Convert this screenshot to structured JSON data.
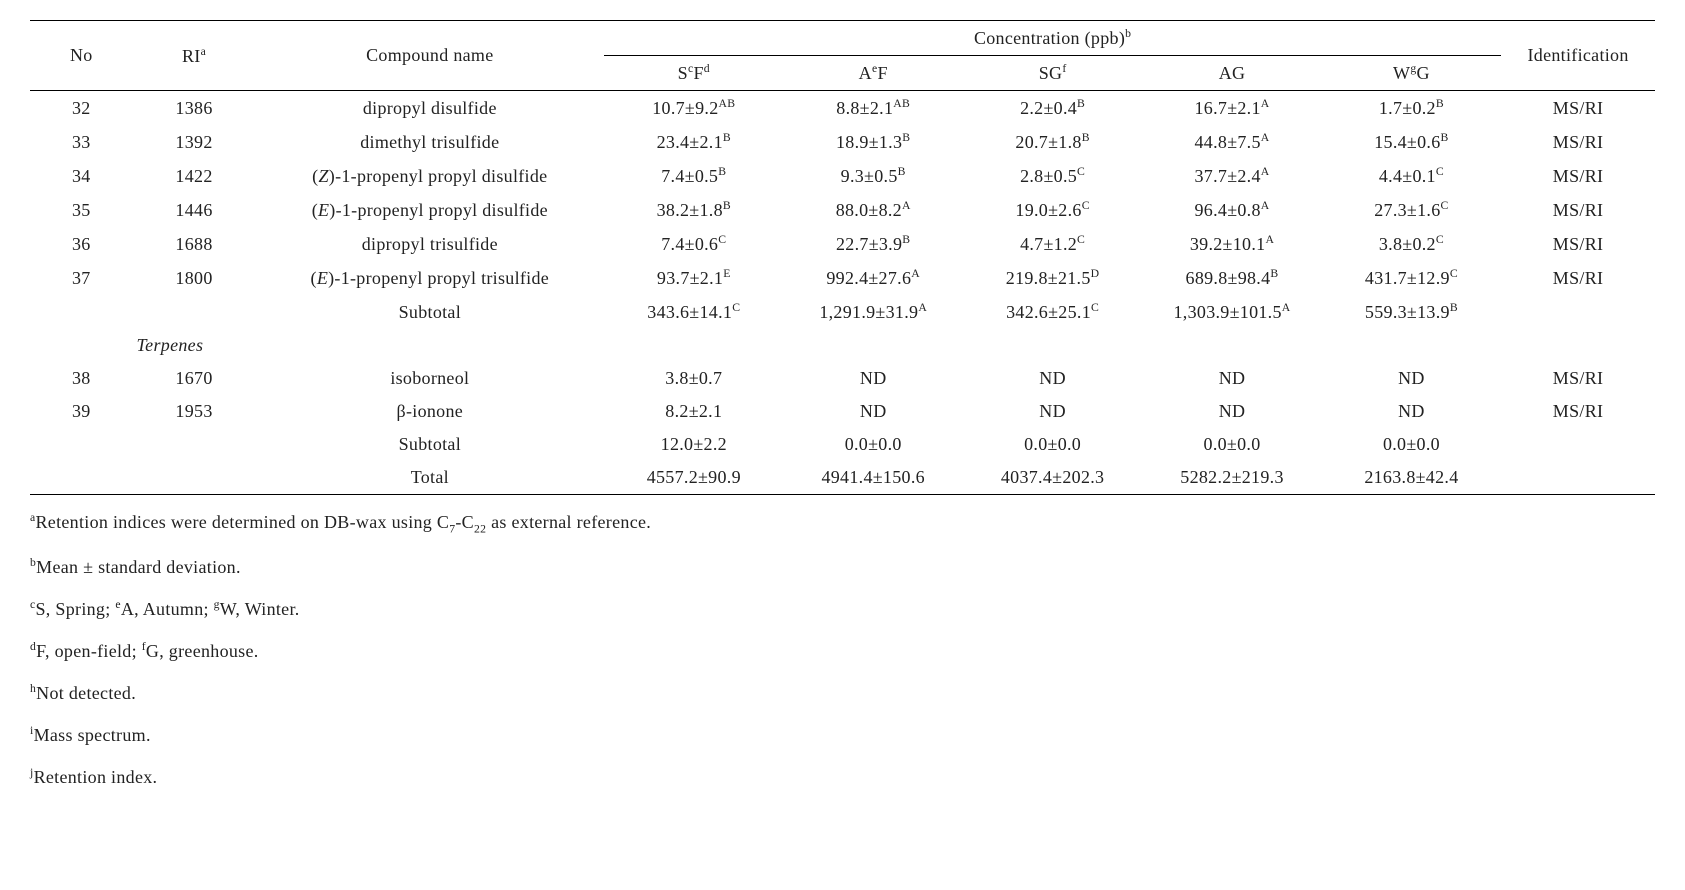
{
  "table": {
    "header": {
      "no": "No",
      "ri": "RI",
      "ri_sup": "a",
      "compound": "Compound name",
      "conc": "Concentration (ppb)",
      "conc_sup": "b",
      "ident": "Identification",
      "cols": {
        "c1_a": "S",
        "c1_sup1": "c",
        "c1_b": "F",
        "c1_sup2": "d",
        "c2_a": "A",
        "c2_sup1": "e",
        "c2_b": "F",
        "c3_a": "SG",
        "c3_sup1": "f",
        "c4": "AG",
        "c5_a": "W",
        "c5_sup1": "g",
        "c5_b": "G"
      }
    },
    "rows": [
      {
        "no": "32",
        "ri": "1386",
        "name": "dipropyl disulfide",
        "v": [
          {
            "t": "10.7±9.2",
            "s": "AB"
          },
          {
            "t": "8.8±2.1",
            "s": "AB"
          },
          {
            "t": "2.2±0.4",
            "s": "B"
          },
          {
            "t": "16.7±2.1",
            "s": "A"
          },
          {
            "t": "1.7±0.2",
            "s": "B"
          }
        ],
        "id": "MS/RI"
      },
      {
        "no": "33",
        "ri": "1392",
        "name": "dimethyl trisulfide",
        "v": [
          {
            "t": "23.4±2.1",
            "s": "B"
          },
          {
            "t": "18.9±1.3",
            "s": "B"
          },
          {
            "t": "20.7±1.8",
            "s": "B"
          },
          {
            "t": "44.8±7.5",
            "s": "A"
          },
          {
            "t": "15.4±0.6",
            "s": "B"
          }
        ],
        "id": "MS/RI"
      },
      {
        "no": "34",
        "ri": "1422",
        "name_pre": "(",
        "name_it": "Z",
        "name_post": ")-1-propenyl propyl disulfide",
        "v": [
          {
            "t": "7.4±0.5",
            "s": "B"
          },
          {
            "t": "9.3±0.5",
            "s": "B"
          },
          {
            "t": "2.8±0.5",
            "s": "C"
          },
          {
            "t": "37.7±2.4",
            "s": "A"
          },
          {
            "t": "4.4±0.1",
            "s": "C"
          }
        ],
        "id": "MS/RI"
      },
      {
        "no": "35",
        "ri": "1446",
        "name_pre": "(",
        "name_it": "E",
        "name_post": ")-1-propenyl propyl disulfide",
        "v": [
          {
            "t": "38.2±1.8",
            "s": "B"
          },
          {
            "t": "88.0±8.2",
            "s": "A"
          },
          {
            "t": "19.0±2.6",
            "s": "C"
          },
          {
            "t": "96.4±0.8",
            "s": "A"
          },
          {
            "t": "27.3±1.6",
            "s": "C"
          }
        ],
        "id": "MS/RI"
      },
      {
        "no": "36",
        "ri": "1688",
        "name": "dipropyl trisulfide",
        "v": [
          {
            "t": "7.4±0.6",
            "s": "C"
          },
          {
            "t": "22.7±3.9",
            "s": "B"
          },
          {
            "t": "4.7±1.2",
            "s": "C"
          },
          {
            "t": "39.2±10.1",
            "s": "A"
          },
          {
            "t": "3.8±0.2",
            "s": "C"
          }
        ],
        "id": "MS/RI"
      },
      {
        "no": "37",
        "ri": "1800",
        "name_pre": "(",
        "name_it": "E",
        "name_post": ")-1-propenyl propyl trisulfide",
        "v": [
          {
            "t": "93.7±2.1",
            "s": "E"
          },
          {
            "t": "992.4±27.6",
            "s": "A"
          },
          {
            "t": "219.8±21.5",
            "s": "D"
          },
          {
            "t": "689.8±98.4",
            "s": "B"
          },
          {
            "t": "431.7±12.9",
            "s": "C"
          }
        ],
        "id": "MS/RI"
      }
    ],
    "subtotal1": {
      "label": "Subtotal",
      "v": [
        {
          "t": "343.6±14.1",
          "s": "C"
        },
        {
          "t": "1,291.9±31.9",
          "s": "A"
        },
        {
          "t": "342.6±25.1",
          "s": "C"
        },
        {
          "t": "1,303.9±101.5",
          "s": "A"
        },
        {
          "t": "559.3±13.9",
          "s": "B"
        }
      ]
    },
    "section2": "Terpenes",
    "rows2": [
      {
        "no": "38",
        "ri": "1670",
        "name": "isoborneol",
        "v": [
          {
            "t": "3.8±0.7",
            "s": ""
          },
          {
            "t": "ND",
            "s": ""
          },
          {
            "t": "ND",
            "s": ""
          },
          {
            "t": "ND",
            "s": ""
          },
          {
            "t": "ND",
            "s": ""
          }
        ],
        "id": "MS/RI"
      },
      {
        "no": "39",
        "ri": "1953",
        "name": "β-ionone",
        "v": [
          {
            "t": "8.2±2.1",
            "s": ""
          },
          {
            "t": "ND",
            "s": ""
          },
          {
            "t": "ND",
            "s": ""
          },
          {
            "t": "ND",
            "s": ""
          },
          {
            "t": "ND",
            "s": ""
          }
        ],
        "id": "MS/RI"
      }
    ],
    "subtotal2": {
      "label": "Subtotal",
      "v": [
        {
          "t": "12.0±2.2"
        },
        {
          "t": "0.0±0.0"
        },
        {
          "t": "0.0±0.0"
        },
        {
          "t": "0.0±0.0"
        },
        {
          "t": "0.0±0.0"
        }
      ]
    },
    "total": {
      "label": "Total",
      "v": [
        {
          "t": "4557.2±90.9"
        },
        {
          "t": "4941.4±150.6"
        },
        {
          "t": "4037.4±202.3"
        },
        {
          "t": "5282.2±219.3"
        },
        {
          "t": "2163.8±42.4"
        }
      ]
    }
  },
  "footnotes": {
    "a": {
      "sup": "a",
      "t1": "Retention indices were determined on DB-wax using C",
      "sub1": "7",
      "t2": "-C",
      "sub2": "22",
      "t3": " as external reference."
    },
    "b": {
      "sup": "b",
      "t": "Mean ± standard deviation."
    },
    "c": {
      "sup1": "c",
      "t1": "S, Spring; ",
      "sup2": "e",
      "t2": "A, Autumn; ",
      "sup3": "g",
      "t3": "W, Winter."
    },
    "d": {
      "sup1": "d",
      "t1": "F, open-field;  ",
      "sup2": "f",
      "t2": "G, greenhouse."
    },
    "h": {
      "sup": "h",
      "t": "Not detected."
    },
    "i": {
      "sup": "i",
      "t": "Mass spectrum."
    },
    "j": {
      "sup": "j",
      "t": "Retention index."
    }
  }
}
